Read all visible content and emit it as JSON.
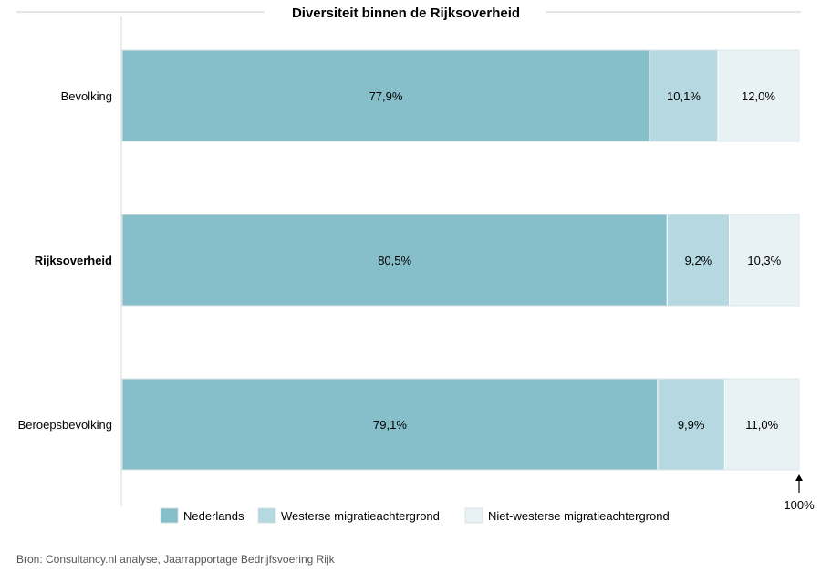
{
  "chart_data": {
    "type": "bar",
    "orientation": "horizontal",
    "stacked": true,
    "title": "Diversiteit binnen de Rijksoverheid",
    "categories": [
      "Bevolking",
      "Rijksoverheid",
      "Beroepsbevolking"
    ],
    "highlighted_category": "Rijksoverheid",
    "series": [
      {
        "name": "Nederlands",
        "values": [
          77.9,
          80.5,
          79.1
        ],
        "labels": [
          "77,9%",
          "80,5%",
          "79,1%"
        ],
        "color": "#86bfc9"
      },
      {
        "name": "Westerse migratieachtergrond",
        "values": [
          10.1,
          9.2,
          9.9
        ],
        "labels": [
          "10,1%",
          "9,2%",
          "9,9%"
        ],
        "color": "#b6d9e1"
      },
      {
        "name": "Niet-westerse migratieachtergrond",
        "values": [
          12.0,
          10.3,
          11.0
        ],
        "labels": [
          "12,0%",
          "10,3%",
          "11,0%"
        ],
        "color": "#e8f1f3"
      }
    ],
    "xlim": [
      0,
      100
    ],
    "end_marker_label": "100%",
    "legend_position": "bottom",
    "grid": false
  },
  "source": "Bron: Consultancy.nl analyse, Jaarrapportage Bedrijfsvoering Rijk"
}
